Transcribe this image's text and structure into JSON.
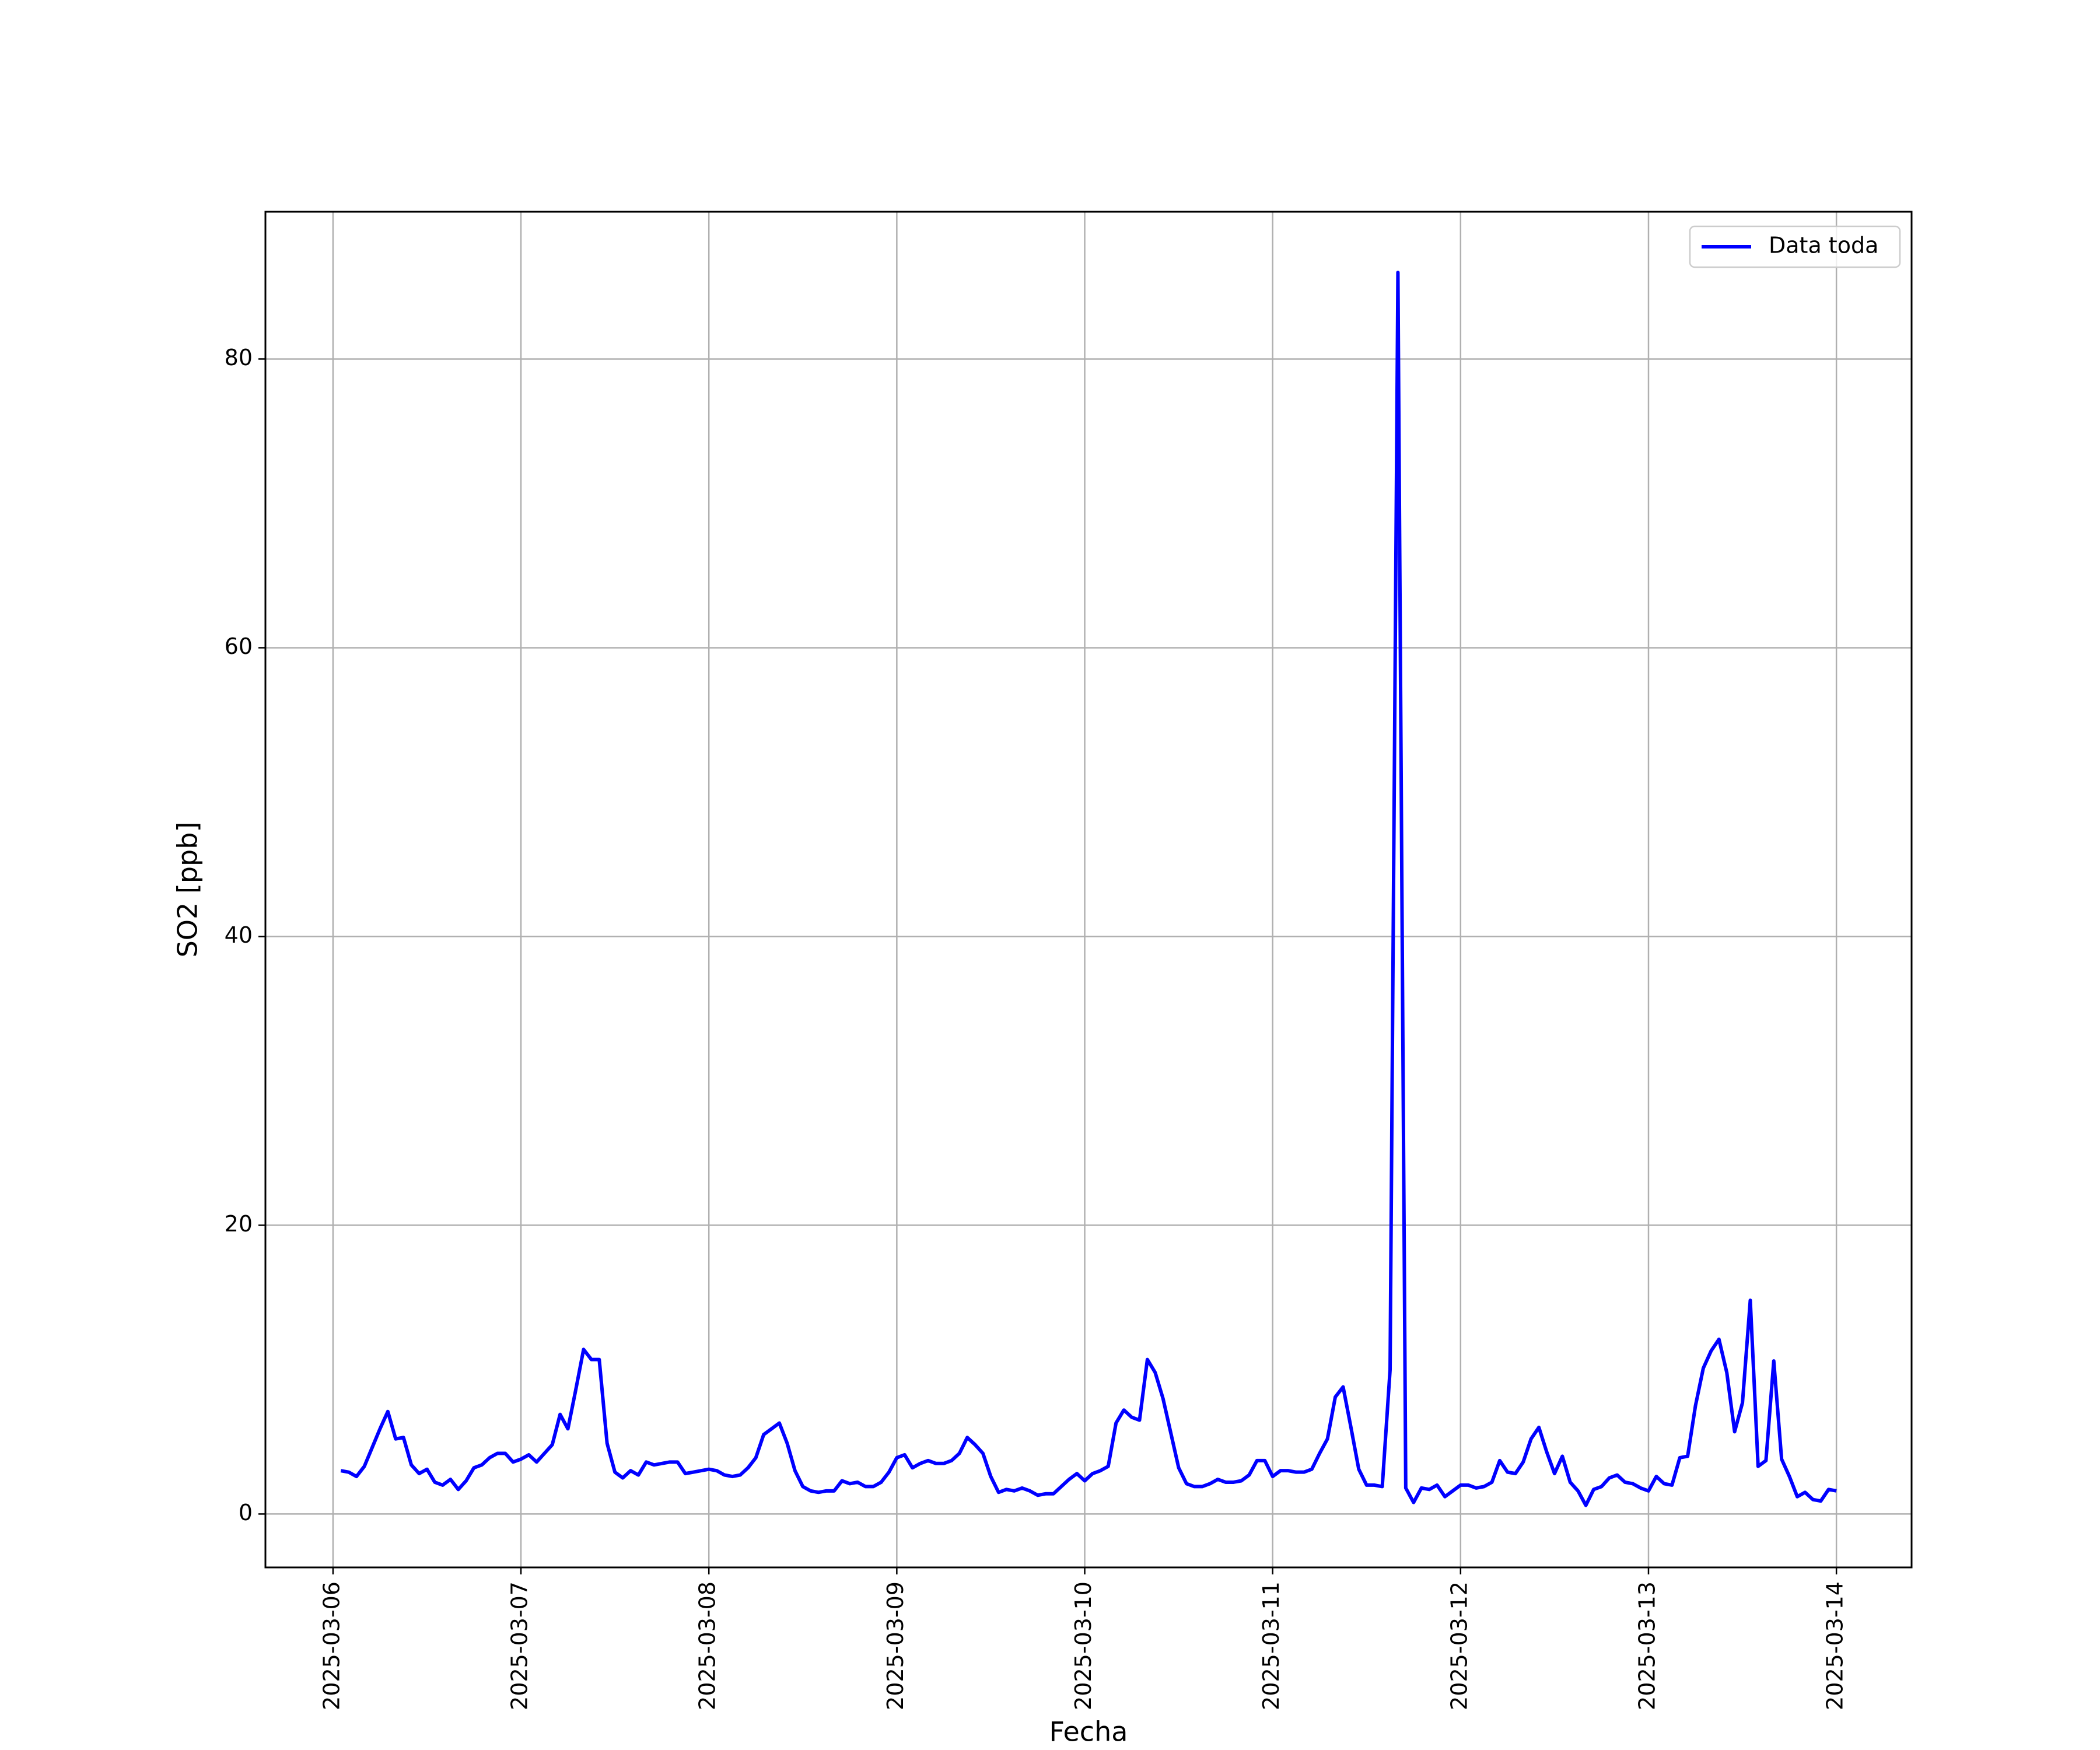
{
  "chart_data": {
    "type": "line",
    "xlabel": "Fecha",
    "ylabel": "SO2 [ppb]",
    "xlim": [
      "2025-03-05 15:22",
      "2025-03-14 09:36"
    ],
    "xticks": [
      "2025-03-06",
      "2025-03-07",
      "2025-03-08",
      "2025-03-09",
      "2025-03-10",
      "2025-03-11",
      "2025-03-12",
      "2025-03-13",
      "2025-03-14"
    ],
    "ylim": [
      -3.7,
      90.2
    ],
    "yticks": [
      0,
      20,
      40,
      60,
      80
    ],
    "grid": true,
    "legend": "upper right",
    "x": [
      "2025-03-06 01:00",
      "2025-03-06 02:00",
      "2025-03-06 03:00",
      "2025-03-06 04:00",
      "2025-03-06 05:00",
      "2025-03-06 06:00",
      "2025-03-06 07:00",
      "2025-03-06 08:00",
      "2025-03-06 09:00",
      "2025-03-06 10:00",
      "2025-03-06 11:00",
      "2025-03-06 12:00",
      "2025-03-06 13:00",
      "2025-03-06 14:00",
      "2025-03-06 15:00",
      "2025-03-06 16:00",
      "2025-03-06 17:00",
      "2025-03-06 18:00",
      "2025-03-06 19:00",
      "2025-03-06 20:00",
      "2025-03-06 21:00",
      "2025-03-06 22:00",
      "2025-03-06 23:00",
      "2025-03-07 00:00",
      "2025-03-07 01:00",
      "2025-03-07 02:00",
      "2025-03-07 03:00",
      "2025-03-07 04:00",
      "2025-03-07 05:00",
      "2025-03-07 06:00",
      "2025-03-07 07:00",
      "2025-03-07 08:00",
      "2025-03-07 09:00",
      "2025-03-07 10:00",
      "2025-03-07 11:00",
      "2025-03-07 12:00",
      "2025-03-07 13:00",
      "2025-03-07 14:00",
      "2025-03-07 15:00",
      "2025-03-07 16:00",
      "2025-03-07 17:00",
      "2025-03-07 18:00",
      "2025-03-07 19:00",
      "2025-03-07 20:00",
      "2025-03-07 21:00",
      "2025-03-07 22:00",
      "2025-03-07 23:00",
      "2025-03-08 00:00",
      "2025-03-08 01:00",
      "2025-03-08 02:00",
      "2025-03-08 03:00",
      "2025-03-08 04:00",
      "2025-03-08 05:00",
      "2025-03-08 06:00",
      "2025-03-08 07:00",
      "2025-03-08 08:00",
      "2025-03-08 09:00",
      "2025-03-08 10:00",
      "2025-03-08 11:00",
      "2025-03-08 12:00",
      "2025-03-08 13:00",
      "2025-03-08 14:00",
      "2025-03-08 15:00",
      "2025-03-08 16:00",
      "2025-03-08 17:00",
      "2025-03-08 18:00",
      "2025-03-08 19:00",
      "2025-03-08 20:00",
      "2025-03-08 21:00",
      "2025-03-08 22:00",
      "2025-03-08 23:00",
      "2025-03-09 00:00",
      "2025-03-09 01:00",
      "2025-03-09 02:00",
      "2025-03-09 03:00",
      "2025-03-09 04:00",
      "2025-03-09 05:00",
      "2025-03-09 06:00",
      "2025-03-09 07:00",
      "2025-03-09 08:00",
      "2025-03-09 09:00",
      "2025-03-09 10:00",
      "2025-03-09 11:00",
      "2025-03-09 12:00",
      "2025-03-09 13:00",
      "2025-03-09 14:00",
      "2025-03-09 15:00",
      "2025-03-09 16:00",
      "2025-03-09 17:00",
      "2025-03-09 18:00",
      "2025-03-09 19:00",
      "2025-03-09 20:00",
      "2025-03-09 21:00",
      "2025-03-09 22:00",
      "2025-03-09 23:00",
      "2025-03-10 00:00",
      "2025-03-10 01:00",
      "2025-03-10 02:00",
      "2025-03-10 03:00",
      "2025-03-10 04:00",
      "2025-03-10 05:00",
      "2025-03-10 06:00",
      "2025-03-10 07:00",
      "2025-03-10 08:00",
      "2025-03-10 09:00",
      "2025-03-10 10:00",
      "2025-03-10 11:00",
      "2025-03-10 12:00",
      "2025-03-10 13:00",
      "2025-03-10 14:00",
      "2025-03-10 15:00",
      "2025-03-10 16:00",
      "2025-03-10 17:00",
      "2025-03-10 18:00",
      "2025-03-10 19:00",
      "2025-03-10 20:00",
      "2025-03-10 21:00",
      "2025-03-10 22:00",
      "2025-03-10 23:00",
      "2025-03-11 00:00",
      "2025-03-11 01:00",
      "2025-03-11 02:00",
      "2025-03-11 03:00",
      "2025-03-11 04:00",
      "2025-03-11 05:00",
      "2025-03-11 06:00",
      "2025-03-11 07:00",
      "2025-03-11 08:00",
      "2025-03-11 09:00",
      "2025-03-11 10:00",
      "2025-03-11 11:00",
      "2025-03-11 12:00",
      "2025-03-11 13:00",
      "2025-03-11 14:00",
      "2025-03-11 15:00",
      "2025-03-11 16:00",
      "2025-03-11 17:00",
      "2025-03-11 18:00",
      "2025-03-11 19:00",
      "2025-03-11 20:00",
      "2025-03-11 21:00",
      "2025-03-11 22:00",
      "2025-03-11 23:00",
      "2025-03-12 00:00",
      "2025-03-12 01:00",
      "2025-03-12 02:00",
      "2025-03-12 03:00",
      "2025-03-12 04:00",
      "2025-03-12 05:00",
      "2025-03-12 06:00",
      "2025-03-12 07:00",
      "2025-03-12 08:00",
      "2025-03-12 09:00",
      "2025-03-12 10:00",
      "2025-03-12 11:00",
      "2025-03-12 12:00",
      "2025-03-12 13:00",
      "2025-03-12 14:00",
      "2025-03-12 15:00",
      "2025-03-12 16:00",
      "2025-03-12 17:00",
      "2025-03-12 18:00",
      "2025-03-12 19:00",
      "2025-03-12 20:00",
      "2025-03-12 21:00",
      "2025-03-12 22:00",
      "2025-03-12 23:00",
      "2025-03-13 00:00",
      "2025-03-13 01:00",
      "2025-03-13 02:00",
      "2025-03-13 03:00",
      "2025-03-13 04:00",
      "2025-03-13 05:00",
      "2025-03-13 06:00",
      "2025-03-13 07:00",
      "2025-03-13 08:00",
      "2025-03-13 09:00",
      "2025-03-13 10:00",
      "2025-03-13 11:00",
      "2025-03-13 12:00",
      "2025-03-13 13:00",
      "2025-03-13 14:00",
      "2025-03-13 15:00",
      "2025-03-13 16:00",
      "2025-03-13 17:00",
      "2025-03-13 18:00",
      "2025-03-13 19:00",
      "2025-03-13 20:00",
      "2025-03-13 21:00",
      "2025-03-13 22:00",
      "2025-03-13 23:00",
      "2025-03-14 00:00"
    ],
    "series": [
      {
        "name": "Data toda",
        "color": "#0000ff",
        "values": [
          3.0,
          2.9,
          2.6,
          3.3,
          4.6,
          5.9,
          7.1,
          5.2,
          5.3,
          3.4,
          2.8,
          3.1,
          2.2,
          2.0,
          2.4,
          1.7,
          2.3,
          3.2,
          3.4,
          3.9,
          4.2,
          4.2,
          3.6,
          3.8,
          4.1,
          3.6,
          4.2,
          4.8,
          6.9,
          5.9,
          8.6,
          11.4,
          10.7,
          10.7,
          4.9,
          2.9,
          2.5,
          3.0,
          2.7,
          3.6,
          3.4,
          3.5,
          3.6,
          3.6,
          2.8,
          2.9,
          3.0,
          3.1,
          3.0,
          2.7,
          2.6,
          2.7,
          3.2,
          3.9,
          5.5,
          5.9,
          6.3,
          4.9,
          3.0,
          1.9,
          1.6,
          1.5,
          1.6,
          1.6,
          2.3,
          2.1,
          2.2,
          1.9,
          1.9,
          2.2,
          2.9,
          3.9,
          4.1,
          3.2,
          3.5,
          3.7,
          3.5,
          3.5,
          3.7,
          4.2,
          5.3,
          4.8,
          4.2,
          2.6,
          1.5,
          1.7,
          1.6,
          1.8,
          1.6,
          1.3,
          1.4,
          1.4,
          1.9,
          2.4,
          2.8,
          2.3,
          2.8,
          3.0,
          3.3,
          6.3,
          7.2,
          6.7,
          6.5,
          10.7,
          9.8,
          8.0,
          5.6,
          3.2,
          2.1,
          1.9,
          1.9,
          2.1,
          2.4,
          2.2,
          2.2,
          2.3,
          2.7,
          3.7,
          3.7,
          2.6,
          3.0,
          3.0,
          2.9,
          2.9,
          3.1,
          4.2,
          5.2,
          8.1,
          8.8,
          6.0,
          3.1,
          2.0,
          2.0,
          1.9,
          10.0,
          86.0,
          1.8,
          0.8,
          1.8,
          1.7,
          2.0,
          1.2,
          1.6,
          2.0,
          2.0,
          1.8,
          1.9,
          2.2,
          3.7,
          2.9,
          2.8,
          3.6,
          5.2,
          6.0,
          4.3,
          2.8,
          4.0,
          2.2,
          1.6,
          0.6,
          1.7,
          1.9,
          2.5,
          2.7,
          2.2,
          2.1,
          1.8,
          1.6,
          2.6,
          2.1,
          2.0,
          3.9,
          4.0,
          7.5,
          10.1,
          11.3,
          12.1,
          9.8,
          5.7,
          7.7,
          14.8,
          3.3,
          3.7,
          10.6,
          3.8,
          2.6,
          1.2,
          1.5,
          1.0,
          0.9,
          1.7,
          1.6
        ]
      }
    ]
  }
}
